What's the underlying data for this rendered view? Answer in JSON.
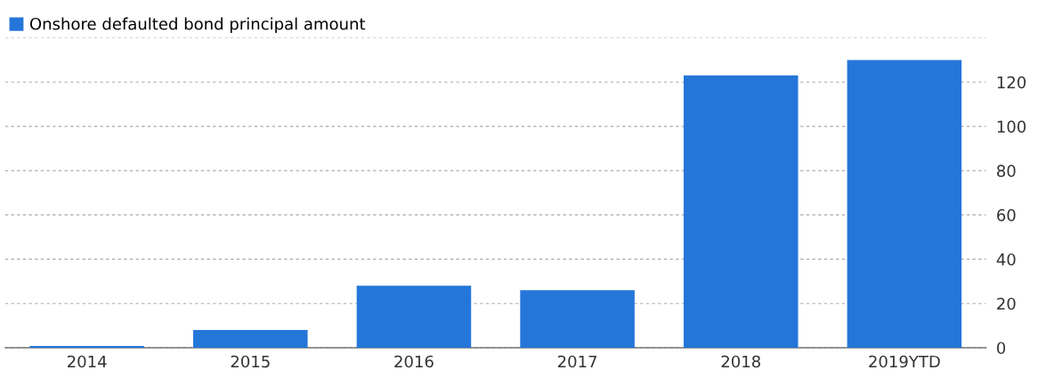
{
  "chart_data": {
    "type": "bar",
    "categories": [
      "2014",
      "2015",
      "2016",
      "2017",
      "2018",
      "2019YTD"
    ],
    "series": [
      {
        "name": "Onshore defaulted bond principal amount",
        "color": "#2576d9",
        "values": [
          0.8,
          8,
          28,
          26,
          123,
          130
        ]
      }
    ],
    "ylim": [
      0,
      140
    ],
    "yticks": [
      0,
      20,
      40,
      60,
      80,
      100,
      120,
      {
        "value": 140,
        "label": null
      }
    ],
    "grid": "y",
    "legend": "top left"
  }
}
